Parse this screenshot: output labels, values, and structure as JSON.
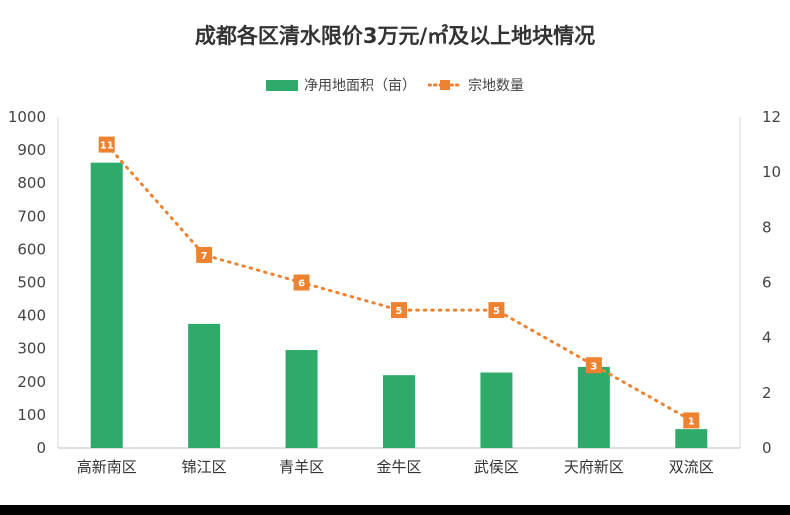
{
  "chart_data": {
    "type": "bar",
    "title": "成都各区清水限价3万元/㎡及以上地块情况",
    "categories": [
      "高新南区",
      "锦江区",
      "青羊区",
      "金牛区",
      "武侯区",
      "天府新区",
      "双流区"
    ],
    "series": [
      {
        "name": "净用地面积（亩）",
        "type": "bar",
        "axis": "left",
        "color": "#2eaa6a",
        "values": [
          862,
          375,
          296,
          220,
          228,
          245,
          57
        ]
      },
      {
        "name": "宗地数量",
        "type": "line",
        "axis": "right",
        "color": "#ee8230",
        "style": "dotted",
        "values": [
          11,
          7,
          6,
          5,
          5,
          3,
          1
        ]
      }
    ],
    "y_left": {
      "min": 0,
      "max": 1000,
      "ticks": [
        0,
        100,
        200,
        300,
        400,
        500,
        600,
        700,
        800,
        900,
        1000
      ]
    },
    "y_right": {
      "min": 0,
      "max": 12,
      "ticks": [
        0,
        2,
        4,
        6,
        8,
        10,
        12
      ]
    },
    "legend_position": "top-center",
    "grid": false
  }
}
